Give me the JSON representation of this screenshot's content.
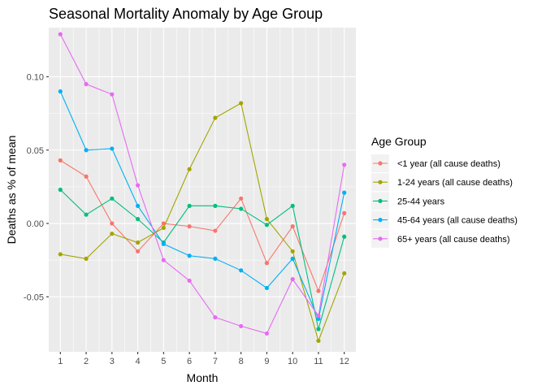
{
  "chart_data": {
    "type": "line",
    "title": "Seasonal Mortality Anomaly by Age Group",
    "xlabel": "Month",
    "ylabel": "Deaths as % of mean",
    "x": [
      1,
      2,
      3,
      4,
      5,
      6,
      7,
      8,
      9,
      10,
      11,
      12
    ],
    "x_ticks": [
      "1",
      "2",
      "3",
      "4",
      "5",
      "6",
      "7",
      "8",
      "9",
      "10",
      "11",
      "12"
    ],
    "xlim": [
      0.55,
      12.45
    ],
    "ylim": [
      -0.0875,
      0.1335
    ],
    "y_ticks": [
      -0.05,
      0.0,
      0.05,
      0.1
    ],
    "y_tick_labels": [
      "-0.05",
      "0.00",
      "0.05",
      "0.10"
    ],
    "grid": true,
    "legend_title": "Age Group",
    "legend_position": "right",
    "series": [
      {
        "name": "<1 year (all cause deaths)",
        "color": "#F8766D",
        "values": [
          0.043,
          0.032,
          0.0,
          -0.019,
          0.0,
          -0.002,
          -0.005,
          0.017,
          -0.027,
          -0.002,
          -0.046,
          0.007
        ]
      },
      {
        "name": "1-24 years (all cause deaths)",
        "color": "#A3A500",
        "values": [
          -0.021,
          -0.024,
          -0.007,
          -0.013,
          -0.003,
          0.037,
          0.072,
          0.082,
          0.003,
          -0.019,
          -0.08,
          -0.034
        ]
      },
      {
        "name": "25-44 years",
        "color": "#00BF7D",
        "values": [
          0.023,
          0.006,
          0.017,
          0.003,
          -0.013,
          0.012,
          0.012,
          0.01,
          -0.001,
          0.012,
          -0.072,
          -0.009
        ]
      },
      {
        "name": "45-64 years (all cause deaths)",
        "color": "#00B0F6",
        "values": [
          0.09,
          0.05,
          0.051,
          0.012,
          -0.014,
          -0.022,
          -0.024,
          -0.032,
          -0.044,
          -0.024,
          -0.065,
          0.021
        ]
      },
      {
        "name": "65+ years (all cause deaths)",
        "color": "#E76BF3",
        "values": [
          0.129,
          0.095,
          0.088,
          0.026,
          -0.025,
          -0.039,
          -0.064,
          -0.07,
          -0.075,
          -0.038,
          -0.063,
          0.04
        ]
      }
    ]
  }
}
